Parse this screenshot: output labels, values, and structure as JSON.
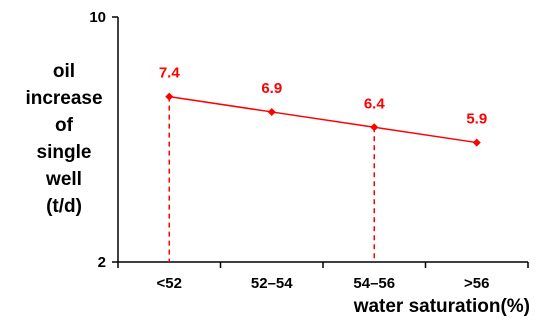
{
  "chart_data": {
    "type": "line",
    "title": "",
    "xlabel": "water saturation(%)",
    "ylabel_lines": [
      "oil",
      "increase",
      "of",
      "single",
      "well",
      "(t/d)"
    ],
    "categories": [
      "<52",
      "52–54",
      "54–56",
      ">56"
    ],
    "series": [
      {
        "values": [
          7.4,
          6.9,
          6.4,
          5.9
        ]
      }
    ],
    "data_labels": [
      "7.4",
      "6.9",
      "6.4",
      "5.9"
    ],
    "ylim": [
      2,
      10
    ],
    "yticks": [
      2,
      10
    ],
    "ytick_labels": [
      "2",
      "10"
    ],
    "grid": false,
    "color": "#ff0000",
    "dropline_categories": [
      "<52",
      "54–56"
    ]
  }
}
